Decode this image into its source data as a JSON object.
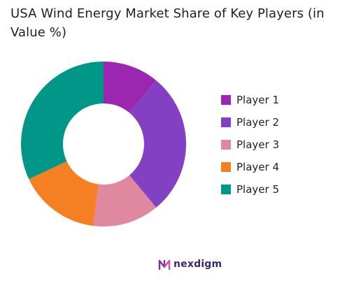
{
  "chart_data": {
    "type": "pie",
    "title": "USA Wind Energy Market Share of Key Players (in Value %)",
    "series": [
      {
        "name": "Player 1",
        "value": 11,
        "color": "#9b27b0"
      },
      {
        "name": "Player 2",
        "value": 28,
        "color": "#8340c2"
      },
      {
        "name": "Player 3",
        "value": 13,
        "color": "#e088a0"
      },
      {
        "name": "Player 4",
        "value": 16,
        "color": "#f57f23"
      },
      {
        "name": "Player 5",
        "value": 32,
        "color": "#009688"
      }
    ],
    "legend_position": "right"
  },
  "branding": {
    "logo_text": "nexdigm",
    "logo_color": "#3d2a6e",
    "logo_icon": "nexdigm-logo-icon"
  }
}
